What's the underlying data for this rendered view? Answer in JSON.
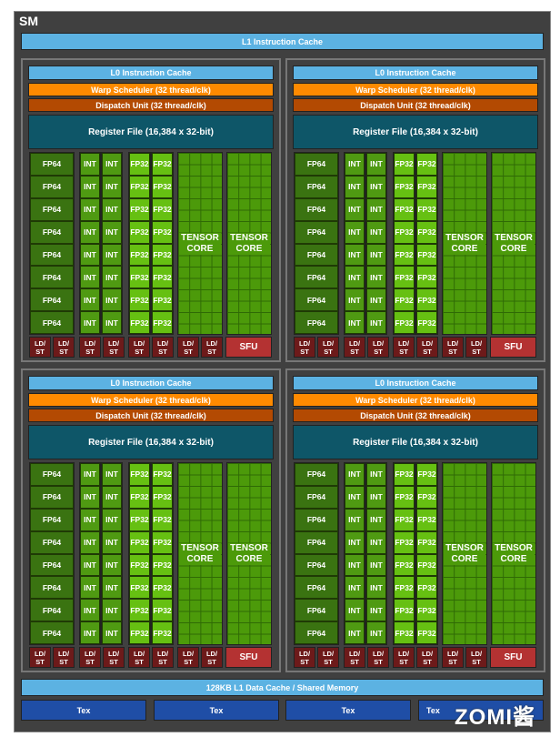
{
  "sm": {
    "title": "SM",
    "l1_instruction_cache": "L1 Instruction Cache",
    "l1_data_cache": "128KB L1 Data Cache / Shared Memory",
    "tex": [
      "Tex",
      "Tex",
      "Tex",
      "Tex"
    ],
    "watermark": "ZOMI酱"
  },
  "partition": {
    "l0": "L0 Instruction Cache",
    "warp": "Warp Scheduler (32 thread/clk)",
    "dispatch": "Dispatch Unit (32 thread/clk)",
    "register": "Register File (16,384 x 32-bit)",
    "fp64": "FP64",
    "int": "INT",
    "fp32": "FP32",
    "tensor_line1": "TENSOR",
    "tensor_line2": "CORE",
    "ldst_line1": "LD/",
    "ldst_line2": "ST",
    "sfu": "SFU"
  },
  "colors": {
    "l0": "#5cb2e2",
    "warp": "#ff8a00",
    "dispatch": "#b34a02",
    "register": "#0e5668",
    "fp64": "#3a7311",
    "int": "#4f9a12",
    "fp32": "#66c012",
    "tensor": "#4c9a0a",
    "ldst": "#6d1a1a",
    "sfu": "#b43232",
    "tex": "#1f4ea6"
  }
}
